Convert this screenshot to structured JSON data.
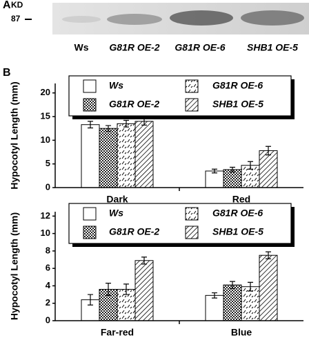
{
  "panel_labels": [
    "A",
    "B"
  ],
  "blot": {
    "unit": "KD",
    "marker": "87",
    "lanes": [
      "Ws",
      "G81R OE-2",
      "G81R OE-6",
      "SHB1 OE-5"
    ]
  },
  "chart_data": [
    {
      "type": "bar",
      "y_label": "Hypocotyl Length (mm)",
      "categories": [
        "Dark",
        "Red"
      ],
      "ylim": [
        0,
        22
      ],
      "yticks": [
        0,
        5,
        10,
        15,
        20
      ],
      "legend": "top",
      "series": [
        {
          "name": "Ws",
          "color": "#ffffff",
          "pattern": "none",
          "values": [
            13.3,
            3.5
          ],
          "errors": [
            0.7,
            0.4
          ]
        },
        {
          "name": "G81R OE-2",
          "color": "#ffffff",
          "pattern": "checker",
          "values": [
            12.5,
            3.8
          ],
          "errors": [
            0.6,
            0.5
          ]
        },
        {
          "name": "G81R OE-6",
          "color": "#ffffff",
          "pattern": "dash",
          "values": [
            13.5,
            4.7
          ],
          "errors": [
            0.7,
            0.8
          ]
        },
        {
          "name": "SHB1 OE-5",
          "color": "#ffffff",
          "pattern": "hatch",
          "values": [
            14.0,
            7.8
          ],
          "errors": [
            0.8,
            0.9
          ]
        }
      ]
    },
    {
      "type": "bar",
      "y_label": "Hypocotyl Length (mm)",
      "categories": [
        "Far-red",
        "Blue"
      ],
      "ylim": [
        0,
        12.5
      ],
      "yticks": [
        0,
        2,
        4,
        6,
        8,
        10,
        12
      ],
      "legend": "top",
      "series": [
        {
          "name": "Ws",
          "color": "#ffffff",
          "pattern": "none",
          "values": [
            2.4,
            2.9
          ],
          "errors": [
            0.6,
            0.3
          ]
        },
        {
          "name": "G81R OE-2",
          "color": "#ffffff",
          "pattern": "checker",
          "values": [
            3.6,
            4.1
          ],
          "errors": [
            0.7,
            0.4
          ]
        },
        {
          "name": "G81R OE-6",
          "color": "#ffffff",
          "pattern": "dash",
          "values": [
            3.6,
            3.9
          ],
          "errors": [
            0.6,
            0.5
          ]
        },
        {
          "name": "SHB1 OE-5",
          "color": "#ffffff",
          "pattern": "hatch",
          "values": [
            6.9,
            7.5
          ],
          "errors": [
            0.4,
            0.4
          ]
        }
      ]
    }
  ]
}
